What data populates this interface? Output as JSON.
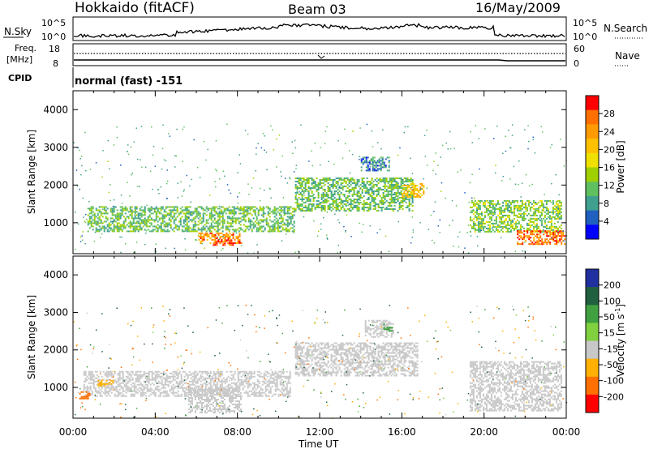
{
  "header": {
    "station": "Hokkaido (fitACF)",
    "beam": "Beam 03",
    "date": "16/May/2009"
  },
  "noise_panel": {
    "left_label": "N.Sky",
    "left_ticks": [
      "10^5",
      "10^0"
    ],
    "right_ticks": [
      "10^5",
      "10^0"
    ],
    "right_label": "N.Search"
  },
  "freq_panel": {
    "left_label_line1": "Freq.",
    "left_label_line2": "[MHz]",
    "left_ticks": [
      "18",
      "8"
    ],
    "right_ticks": [
      "60",
      "0"
    ],
    "right_label": "Nave"
  },
  "cpid_panel": {
    "label": "CPID",
    "text": "normal (fast) -151"
  },
  "axes": {
    "x_ticks": [
      "00:00",
      "04:00",
      "08:00",
      "12:00",
      "16:00",
      "20:00",
      "00:00"
    ],
    "x_label": "Time UT",
    "y_ticks": [
      "4000",
      "3000",
      "2000",
      "1000"
    ],
    "y_label": "Slant Range [km]"
  },
  "power_colorbar": {
    "ticks": [
      "28",
      "24",
      "20",
      "16",
      "12",
      "8",
      "4"
    ],
    "label": "Power [dB]",
    "colors": [
      "#ff0000",
      "#ff7000",
      "#ff9a00",
      "#ffc000",
      "#f0e000",
      "#a0d000",
      "#60c060",
      "#40a090",
      "#2060c0",
      "#0000ff"
    ]
  },
  "velocity_colorbar": {
    "ticks": [
      "200",
      "100",
      "50",
      "15",
      "-15",
      "-50",
      "-100",
      "-200"
    ],
    "label": "Velocity [m s",
    "label_sup": "-1",
    "label_end": "]",
    "colors": [
      "#2030a0",
      "#206040",
      "#40a040",
      "#80d040",
      "#c8c8c8",
      "#ffb000",
      "#ff7000",
      "#ff0000"
    ]
  },
  "chart_data": [
    {
      "type": "heatmap",
      "title": "Power",
      "xlabel": "Time UT",
      "ylabel": "Slant Range [km]",
      "xlim": [
        0,
        24
      ],
      "ylim": [
        180,
        4500
      ],
      "colorbar": {
        "label": "Power [dB]",
        "range": [
          0,
          30
        ]
      },
      "regions": [
        {
          "t": [
            0.7,
            10.8
          ],
          "r": [
            760,
            1440
          ],
          "level": 10
        },
        {
          "t": [
            6.1,
            8.2
          ],
          "r": [
            450,
            740
          ],
          "level": 24
        },
        {
          "t": [
            6.8,
            7.8
          ],
          "r": [
            400,
            560
          ],
          "level": 28
        },
        {
          "t": [
            10.8,
            16.5
          ],
          "r": [
            1300,
            2200
          ],
          "level": 10
        },
        {
          "t": [
            14.0,
            15.4
          ],
          "r": [
            2400,
            2750
          ],
          "level": 6
        },
        {
          "t": [
            16.0,
            17.1
          ],
          "r": [
            1700,
            2050
          ],
          "level": 20
        },
        {
          "t": [
            19.3,
            23.8
          ],
          "r": [
            760,
            1600
          ],
          "level": 12
        },
        {
          "t": [
            21.6,
            23.9
          ],
          "r": [
            450,
            800
          ],
          "level": 26
        }
      ]
    },
    {
      "type": "heatmap",
      "title": "Velocity",
      "xlabel": "Time UT",
      "ylabel": "Slant Range [km]",
      "xlim": [
        0,
        24
      ],
      "ylim": [
        180,
        4500
      ],
      "colorbar": {
        "label": "Velocity [m s-1]",
        "range": [
          -200,
          200
        ]
      },
      "regions": [
        {
          "t": [
            0.5,
            10.6
          ],
          "r": [
            760,
            1440
          ],
          "velocity": 0
        },
        {
          "t": [
            5.6,
            8.2
          ],
          "r": [
            350,
            1000
          ],
          "velocity": 0
        },
        {
          "t": [
            10.8,
            16.8
          ],
          "r": [
            1300,
            2200
          ],
          "velocity": 0
        },
        {
          "t": [
            14.2,
            15.6
          ],
          "r": [
            2350,
            2800
          ],
          "velocity": 0
        },
        {
          "t": [
            15.1,
            15.5
          ],
          "r": [
            2500,
            2700
          ],
          "velocity": 60
        },
        {
          "t": [
            19.3,
            23.8
          ],
          "r": [
            400,
            1700
          ],
          "velocity": 0
        },
        {
          "t": [
            1.2,
            2.0
          ],
          "r": [
            1050,
            1200
          ],
          "velocity": -60
        },
        {
          "t": [
            0.3,
            0.8
          ],
          "r": [
            700,
            900
          ],
          "velocity": -100
        }
      ]
    }
  ]
}
